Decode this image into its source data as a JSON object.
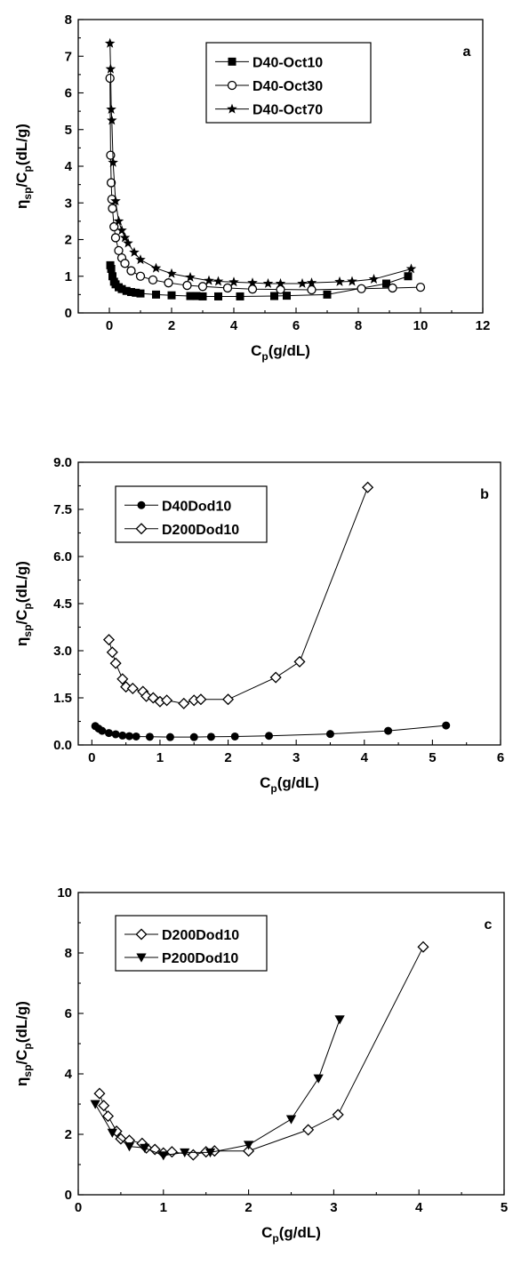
{
  "chart_data": [
    {
      "type": "line",
      "panel_label": "a",
      "xlabel": {
        "main": "C",
        "sub": "p",
        "rest": "(g/dL)"
      },
      "ylabel": {
        "pre": "η",
        "sub1": "sp",
        "mid": "/C",
        "sub2": "p",
        "rest": "(dL/g)"
      },
      "xlim": [
        -1,
        12
      ],
      "ylim": [
        0,
        8
      ],
      "xticks": [
        0,
        2,
        4,
        6,
        8,
        10,
        12
      ],
      "yticks": [
        0,
        1,
        2,
        3,
        4,
        5,
        6,
        7,
        8
      ],
      "tick_decimals": 0,
      "legend_position": "top-right",
      "series": [
        {
          "name": "D40-Oct10",
          "marker": "square-filled",
          "x": [
            0.03,
            0.06,
            0.1,
            0.15,
            0.2,
            0.3,
            0.4,
            0.55,
            0.7,
            0.85,
            1.0,
            1.5,
            2.0,
            2.6,
            2.8,
            3.0,
            3.5,
            4.2,
            5.3,
            5.7,
            7.0,
            8.9,
            9.6
          ],
          "y": [
            1.3,
            1.2,
            1.0,
            0.85,
            0.78,
            0.7,
            0.65,
            0.6,
            0.57,
            0.55,
            0.53,
            0.5,
            0.48,
            0.46,
            0.46,
            0.45,
            0.45,
            0.45,
            0.46,
            0.47,
            0.5,
            0.8,
            1.0
          ]
        },
        {
          "name": "D40-Oct30",
          "marker": "circle-open",
          "x": [
            0.02,
            0.04,
            0.06,
            0.08,
            0.1,
            0.15,
            0.2,
            0.3,
            0.4,
            0.5,
            0.7,
            1.0,
            1.4,
            1.9,
            2.5,
            3.0,
            3.8,
            4.6,
            5.5,
            6.5,
            8.1,
            9.1,
            10.0
          ],
          "y": [
            6.4,
            4.3,
            3.55,
            3.1,
            2.85,
            2.35,
            2.05,
            1.7,
            1.5,
            1.35,
            1.15,
            1.0,
            0.9,
            0.82,
            0.75,
            0.72,
            0.68,
            0.65,
            0.64,
            0.63,
            0.66,
            0.68,
            0.7
          ]
        },
        {
          "name": "D40-Oct70",
          "marker": "star-filled",
          "x": [
            0.02,
            0.04,
            0.06,
            0.08,
            0.12,
            0.2,
            0.3,
            0.4,
            0.5,
            0.6,
            0.8,
            1.0,
            1.5,
            2.0,
            2.6,
            3.2,
            3.5,
            4.0,
            4.6,
            5.1,
            5.5,
            6.2,
            6.5,
            7.4,
            7.8,
            8.5,
            9.7
          ],
          "y": [
            7.35,
            6.65,
            5.55,
            5.25,
            4.1,
            3.05,
            2.5,
            2.25,
            2.05,
            1.9,
            1.65,
            1.45,
            1.22,
            1.07,
            0.97,
            0.88,
            0.86,
            0.84,
            0.82,
            0.8,
            0.8,
            0.8,
            0.82,
            0.85,
            0.86,
            0.92,
            1.2
          ]
        }
      ]
    },
    {
      "type": "line",
      "panel_label": "b",
      "xlabel": {
        "main": "C",
        "sub": "p",
        "rest": "(g/dL)"
      },
      "ylabel": {
        "pre": "η",
        "sub1": "sp",
        "mid": "/C",
        "sub2": "p",
        "rest": "(dL/g)"
      },
      "xlim": [
        -0.2,
        6
      ],
      "ylim": [
        0,
        9
      ],
      "xticks": [
        0,
        1,
        2,
        3,
        4,
        5,
        6
      ],
      "yticks": [
        0,
        1.5,
        3,
        4.5,
        6,
        7.5,
        9
      ],
      "tick_decimals": 1,
      "legend_position": "top-left",
      "series": [
        {
          "name": "D40Dod10",
          "marker": "circle-filled",
          "x": [
            0.05,
            0.1,
            0.15,
            0.25,
            0.35,
            0.45,
            0.55,
            0.65,
            0.85,
            1.15,
            1.5,
            1.75,
            2.1,
            2.6,
            3.5,
            4.35,
            5.2
          ],
          "y": [
            0.6,
            0.52,
            0.45,
            0.38,
            0.34,
            0.3,
            0.28,
            0.27,
            0.26,
            0.25,
            0.25,
            0.26,
            0.27,
            0.29,
            0.35,
            0.45,
            0.62
          ]
        },
        {
          "name": "D200Dod10",
          "marker": "diamond-open",
          "x": [
            0.25,
            0.3,
            0.35,
            0.45,
            0.5,
            0.6,
            0.75,
            0.8,
            0.9,
            1.0,
            1.1,
            1.35,
            1.5,
            1.6,
            2.0,
            2.7,
            3.05,
            4.05
          ],
          "y": [
            3.35,
            2.95,
            2.6,
            2.1,
            1.85,
            1.8,
            1.7,
            1.55,
            1.5,
            1.38,
            1.42,
            1.32,
            1.42,
            1.45,
            1.45,
            2.15,
            2.65,
            8.2
          ]
        }
      ]
    },
    {
      "type": "line",
      "panel_label": "c",
      "xlabel": {
        "main": "C",
        "sub": "p",
        "rest": "(g/dL)"
      },
      "ylabel": {
        "pre": "η",
        "sub1": "sp",
        "mid": "/C",
        "sub2": "p",
        "rest": "(dL/g)"
      },
      "xlim": [
        0,
        5
      ],
      "ylim": [
        0,
        10
      ],
      "xticks": [
        0,
        1,
        2,
        3,
        4,
        5
      ],
      "yticks": [
        0,
        2,
        4,
        6,
        8,
        10
      ],
      "tick_decimals": 0,
      "legend_position": "top-left",
      "series": [
        {
          "name": "D200Dod10",
          "marker": "diamond-open",
          "x": [
            0.25,
            0.3,
            0.35,
            0.45,
            0.5,
            0.6,
            0.75,
            0.8,
            0.9,
            1.0,
            1.1,
            1.35,
            1.5,
            1.6,
            2.0,
            2.7,
            3.05,
            4.05
          ],
          "y": [
            3.35,
            2.95,
            2.6,
            2.1,
            1.85,
            1.8,
            1.7,
            1.55,
            1.5,
            1.38,
            1.42,
            1.32,
            1.42,
            1.45,
            1.45,
            2.15,
            2.65,
            8.2
          ]
        },
        {
          "name": "P200Dod10",
          "marker": "triangle-down-filled",
          "x": [
            0.2,
            0.4,
            0.6,
            0.78,
            1.0,
            1.25,
            1.55,
            2.0,
            2.5,
            2.82,
            3.07
          ],
          "y": [
            3.0,
            2.05,
            1.6,
            1.55,
            1.3,
            1.4,
            1.4,
            1.65,
            2.5,
            3.85,
            5.8
          ]
        }
      ]
    }
  ]
}
